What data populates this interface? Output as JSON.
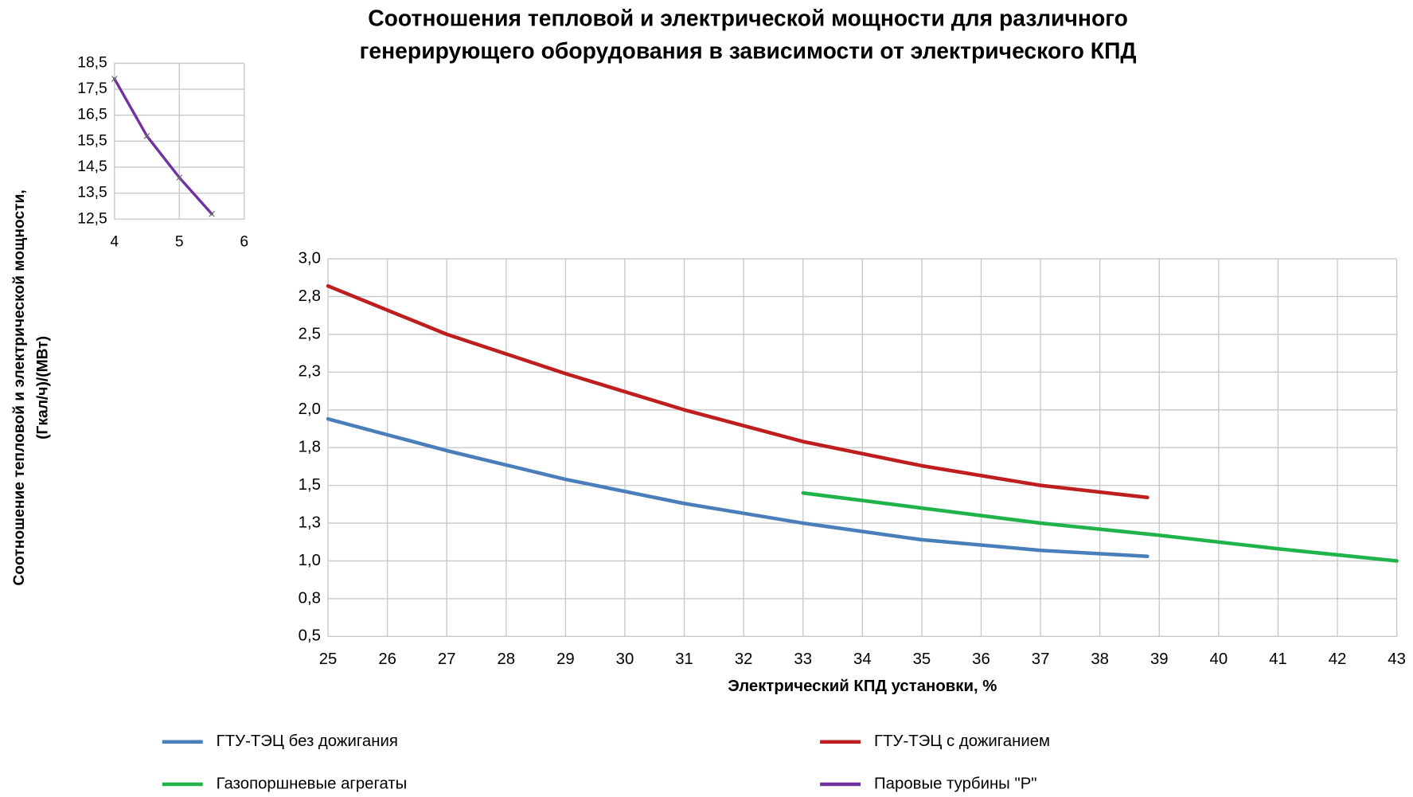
{
  "chart_data": [
    {
      "type": "line",
      "title": [
        "Соотношения тепловой и электрической мощности для различного",
        "генерирующего оборудования в зависимости от электрического КПД"
      ],
      "ylabel": [
        "Соотношение тепловой и электрической мощности,",
        "(Гкал/ч)/(МВт)"
      ],
      "xlabel": "Электрический КПД установки, %",
      "xlim": [
        25,
        43
      ],
      "xticks": [
        25,
        26,
        27,
        28,
        29,
        30,
        31,
        32,
        33,
        34,
        35,
        36,
        37,
        38,
        39,
        40,
        41,
        42,
        43
      ],
      "ylim": [
        0.5,
        3.0
      ],
      "yticks": [
        {
          "value": 0.5,
          "label": "0,5"
        },
        {
          "value": 0.75,
          "label": "0,8"
        },
        {
          "value": 1.0,
          "label": "1,0"
        },
        {
          "value": 1.25,
          "label": "1,3"
        },
        {
          "value": 1.5,
          "label": "1,5"
        },
        {
          "value": 1.75,
          "label": "1,8"
        },
        {
          "value": 2.0,
          "label": "2,0"
        },
        {
          "value": 2.25,
          "label": "2,3"
        },
        {
          "value": 2.5,
          "label": "2,5"
        },
        {
          "value": 2.75,
          "label": "2,8"
        },
        {
          "value": 3.0,
          "label": "3,0"
        }
      ],
      "grid": true,
      "series": [
        {
          "name": "ГТУ-ТЭЦ без дожигания",
          "color": "#4a7ebb",
          "x": [
            25,
            27,
            29,
            31,
            33,
            35,
            37,
            38.8
          ],
          "values": [
            1.94,
            1.73,
            1.54,
            1.38,
            1.25,
            1.14,
            1.07,
            1.03
          ]
        },
        {
          "name": "ГТУ-ТЭЦ с дожиганием",
          "color": "#be1e1e",
          "x": [
            25,
            27,
            29,
            31,
            33,
            35,
            37,
            38.8
          ],
          "values": [
            2.82,
            2.5,
            2.24,
            2.0,
            1.79,
            1.63,
            1.5,
            1.42
          ]
        },
        {
          "name": "Газопоршневые агрегаты",
          "color": "#1fb34a",
          "x": [
            33,
            35,
            37,
            39,
            41,
            43
          ],
          "values": [
            1.45,
            1.35,
            1.25,
            1.17,
            1.08,
            1.0
          ]
        }
      ]
    },
    {
      "type": "line",
      "xlim": [
        4,
        6
      ],
      "xticks": [
        4,
        5,
        6
      ],
      "ylim": [
        12.5,
        18.5
      ],
      "yticks": [
        {
          "value": 12.5,
          "label": "12,5"
        },
        {
          "value": 13.5,
          "label": "13,5"
        },
        {
          "value": 14.5,
          "label": "14,5"
        },
        {
          "value": 15.5,
          "label": "15,5"
        },
        {
          "value": 16.5,
          "label": "16,5"
        },
        {
          "value": 17.5,
          "label": "17,5"
        },
        {
          "value": 18.5,
          "label": "18,5"
        }
      ],
      "grid": true,
      "series": [
        {
          "name": "Паровые турбины \"Р\"",
          "color": "#7030a0",
          "x": [
            4,
            4.5,
            5,
            5.5
          ],
          "values": [
            17.9,
            15.7,
            14.1,
            12.7
          ]
        }
      ]
    }
  ]
}
